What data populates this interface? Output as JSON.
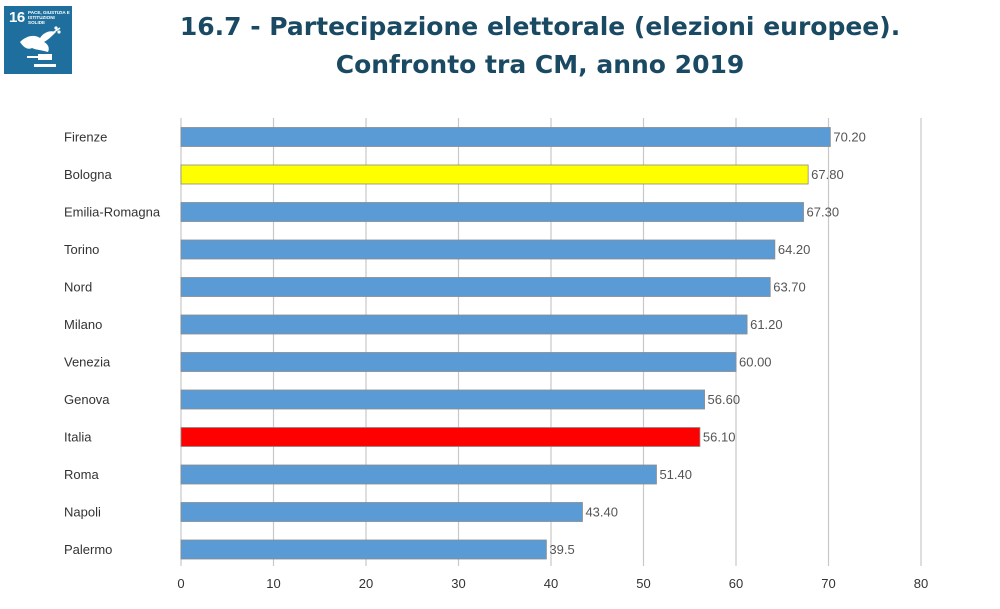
{
  "header": {
    "title_line1": "16.7 - Partecipazione elettorale (elezioni europee).",
    "title_line2": "Confronto tra CM, anno 2019"
  },
  "badge": {
    "number": "16",
    "caption": "PACE, GIUSTIZIA E ISTITUZIONI SOLIDE",
    "icon": "dove-gavel-icon",
    "color": "#1f6f9e"
  },
  "chart_data": {
    "type": "bar",
    "orientation": "horizontal",
    "categories": [
      "Firenze",
      "Bologna",
      "Emilia-Romagna",
      "Torino",
      "Nord",
      "Milano",
      "Venezia",
      "Genova",
      "Italia",
      "Roma",
      "Napoli",
      "Palermo"
    ],
    "values": [
      70.2,
      67.8,
      67.3,
      64.2,
      63.7,
      61.2,
      60.0,
      56.6,
      56.1,
      51.4,
      43.4,
      39.5
    ],
    "value_labels": [
      "70.20",
      "67.80",
      "67.30",
      "64.20",
      "63.70",
      "61.20",
      "60.00",
      "56.60",
      "56.10",
      "51.40",
      "43.40",
      "39.5"
    ],
    "colors": [
      "#5b9bd5",
      "#ffff00",
      "#5b9bd5",
      "#5b9bd5",
      "#5b9bd5",
      "#5b9bd5",
      "#5b9bd5",
      "#5b9bd5",
      "#ff0000",
      "#5b9bd5",
      "#5b9bd5",
      "#5b9bd5"
    ],
    "xlim": [
      0,
      80
    ],
    "xticks": [
      0,
      10,
      20,
      30,
      40,
      50,
      60,
      70,
      80
    ],
    "grid": true,
    "legend": "none",
    "title": "",
    "xlabel": "",
    "ylabel": ""
  }
}
